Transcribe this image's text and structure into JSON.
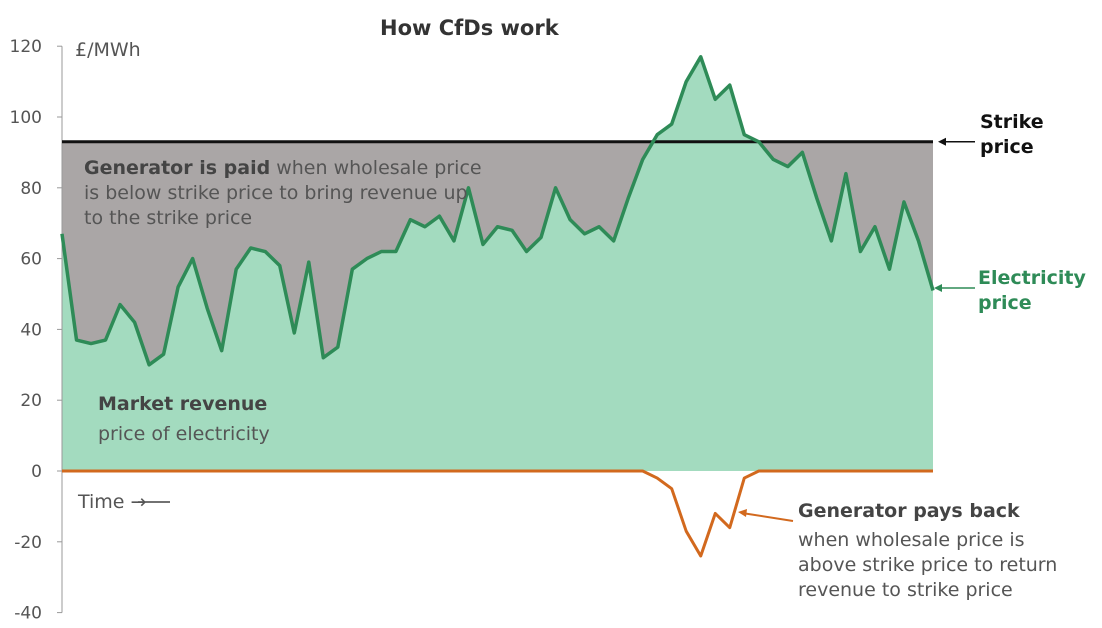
{
  "chart_data": {
    "type": "area",
    "title": "How CfDs work",
    "ylabel": "£/MWh",
    "xlabel": "Time →",
    "ylim": [
      -40,
      120
    ],
    "yticks": [
      120,
      100,
      80,
      60,
      40,
      20,
      0,
      -20,
      -40
    ],
    "strike_price": 93,
    "series": [
      {
        "name": "Electricity price",
        "values": [
          67,
          37,
          36,
          37,
          47,
          42,
          30,
          33,
          52,
          60,
          46,
          34,
          57,
          63,
          62,
          58,
          39,
          59,
          32,
          35,
          57,
          60,
          62,
          62,
          71,
          69,
          72,
          65,
          80,
          64,
          69,
          68,
          62,
          66,
          80,
          71,
          67,
          69,
          65,
          77,
          88,
          95,
          98,
          110,
          117,
          105,
          109,
          95,
          93,
          88,
          86,
          90,
          77,
          65,
          84,
          62,
          69,
          57,
          76,
          65,
          51
        ]
      },
      {
        "name": "Generator pays back",
        "derived": "min(0, strike_price - electricity price)"
      }
    ],
    "colors": {
      "price_line": "#2e8b57",
      "market_fill": "#a3dbbf",
      "paid_fill": "#aaa6a6",
      "strike": "#111111",
      "payback": "#d2691e",
      "price_label": "#2e8b57"
    }
  },
  "labels": {
    "strike": "Strike price",
    "electricity": "Electricity price",
    "paid_bold": "Generator is paid",
    "paid_text": " when wholesale price is below strike price to bring revenue up to the strike price",
    "market_bold": "Market revenue",
    "market_text": "price of electricity",
    "payback_bold": "Generator pays back",
    "payback_text": "when wholesale price is above strike price to return revenue to strike price"
  }
}
